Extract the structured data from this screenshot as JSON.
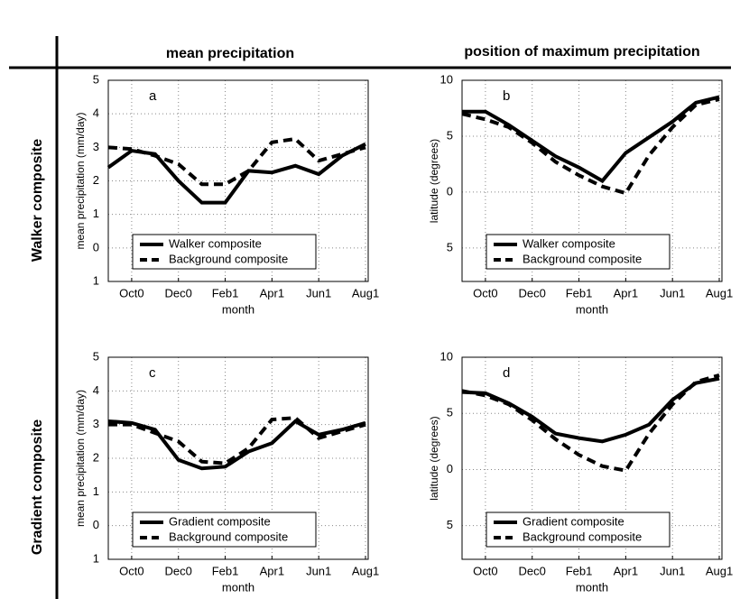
{
  "column_titles": [
    "mean precipitation",
    "position of maximum precipitation"
  ],
  "row_titles": [
    "Walker composite",
    "Gradient composite"
  ],
  "chart_data": [
    {
      "type": "line",
      "panel_label": "a",
      "ylabel": "mean precipitation (mm/day)",
      "xlabel": "month",
      "categories": [
        null,
        "Oct0",
        null,
        "Dec0",
        null,
        "Feb1",
        null,
        "Apr1",
        null,
        "Jun1",
        null,
        "Aug1"
      ],
      "ylim": [
        -1,
        5
      ],
      "yticks": [
        {
          "value": -1,
          "label": "1"
        },
        0,
        1,
        2,
        3,
        4,
        5
      ],
      "grid": true,
      "legend": "lower left",
      "series": [
        {
          "name": "Walker composite",
          "color": "#000000",
          "linestyle": "solid",
          "values": [
            2.4,
            2.9,
            2.8,
            2.0,
            1.35,
            1.35,
            2.3,
            2.25,
            2.45,
            2.2,
            2.75,
            3.1
          ]
        },
        {
          "name": "Background composite",
          "color": "#000000",
          "linestyle": "dashed",
          "values": [
            3.0,
            2.95,
            2.75,
            2.5,
            1.9,
            1.9,
            2.3,
            3.15,
            3.25,
            2.6,
            2.8,
            3.0
          ]
        }
      ]
    },
    {
      "type": "line",
      "panel_label": "b",
      "ylabel": "latitude (degrees)",
      "xlabel": "month",
      "categories": [
        null,
        "Oct0",
        null,
        "Dec0",
        null,
        "Feb1",
        null,
        "Apr1",
        null,
        "Jun1",
        null,
        "Aug1"
      ],
      "ylim": [
        -8,
        10
      ],
      "yticks": [
        {
          "value": -5,
          "label": "5"
        },
        0,
        5,
        10
      ],
      "grid": true,
      "legend": "lower left",
      "series": [
        {
          "name": "Walker composite",
          "color": "#000000",
          "linestyle": "solid",
          "values": [
            7.2,
            7.2,
            6.0,
            4.6,
            3.2,
            2.2,
            1.0,
            3.5,
            4.9,
            6.3,
            8.0,
            8.5
          ]
        },
        {
          "name": "Background composite",
          "color": "#000000",
          "linestyle": "dashed",
          "values": [
            7.0,
            6.5,
            5.8,
            4.4,
            2.7,
            1.5,
            0.5,
            -0.1,
            3.3,
            5.8,
            7.8,
            8.3
          ]
        }
      ]
    },
    {
      "type": "line",
      "panel_label": "c",
      "ylabel": "mean precipitation (mm/day)",
      "xlabel": "month",
      "categories": [
        null,
        "Oct0",
        null,
        "Dec0",
        null,
        "Feb1",
        null,
        "Apr1",
        null,
        "Jun1",
        null,
        "Aug1"
      ],
      "ylim": [
        -1,
        5
      ],
      "yticks": [
        {
          "value": -1,
          "label": "1"
        },
        0,
        1,
        2,
        3,
        4,
        5
      ],
      "grid": true,
      "legend": "lower left",
      "series": [
        {
          "name": "Gradient composite",
          "color": "#000000",
          "linestyle": "solid",
          "values": [
            3.1,
            3.05,
            2.85,
            1.95,
            1.7,
            1.75,
            2.2,
            2.45,
            3.1,
            2.7,
            2.85,
            3.05
          ]
        },
        {
          "name": "Background composite",
          "color": "#000000",
          "linestyle": "dashed",
          "values": [
            3.0,
            3.0,
            2.75,
            2.5,
            1.9,
            1.85,
            2.3,
            3.15,
            3.2,
            2.6,
            2.8,
            3.0
          ]
        }
      ]
    },
    {
      "type": "line",
      "panel_label": "d",
      "ylabel": "latitude (degrees)",
      "xlabel": "month",
      "categories": [
        null,
        "Oct0",
        null,
        "Dec0",
        null,
        "Feb1",
        null,
        "Apr1",
        null,
        "Jun1",
        null,
        "Aug1"
      ],
      "ylim": [
        -8,
        10
      ],
      "yticks": [
        {
          "value": -5,
          "label": "5"
        },
        0,
        5,
        10
      ],
      "grid": true,
      "legend": "lower left",
      "series": [
        {
          "name": "Gradient composite",
          "color": "#000000",
          "linestyle": "solid",
          "values": [
            6.9,
            6.8,
            5.9,
            4.7,
            3.2,
            2.8,
            2.5,
            3.1,
            4.0,
            6.2,
            7.7,
            8.1
          ]
        },
        {
          "name": "Background composite",
          "color": "#000000",
          "linestyle": "dashed",
          "values": [
            7.0,
            6.6,
            5.8,
            4.4,
            2.7,
            1.3,
            0.3,
            -0.1,
            3.2,
            5.8,
            7.8,
            8.4
          ]
        }
      ]
    }
  ]
}
